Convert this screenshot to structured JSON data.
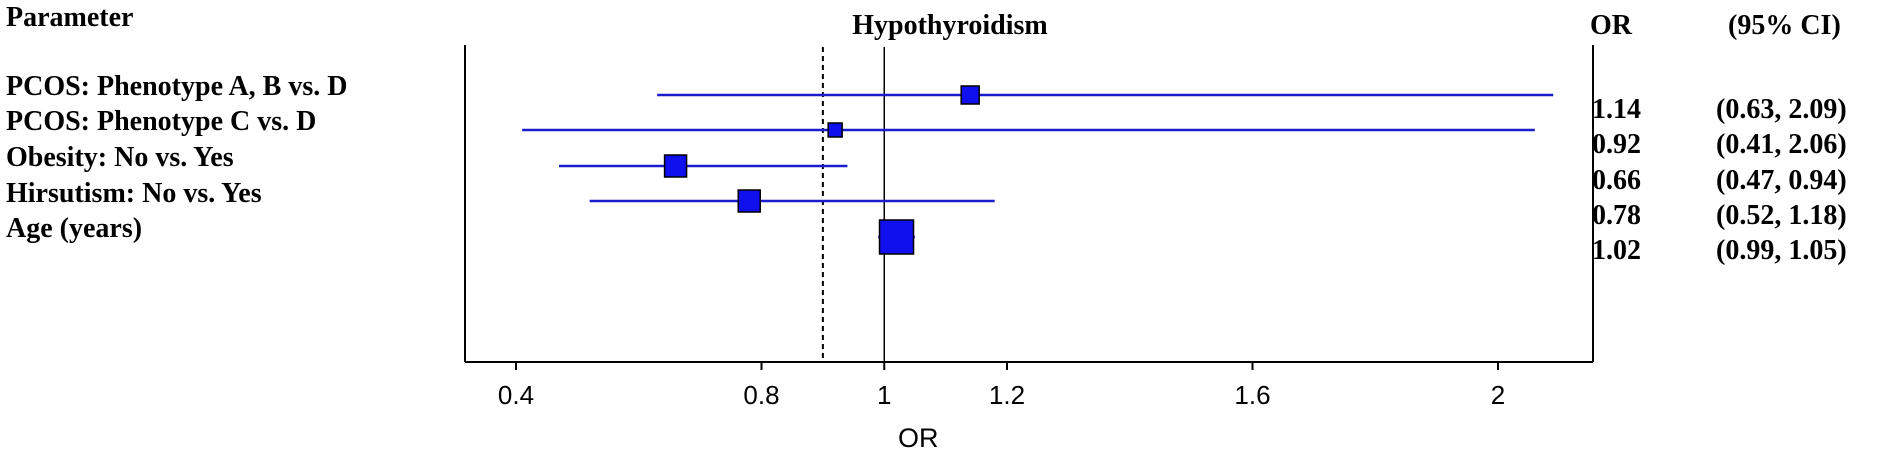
{
  "header": {
    "parameter": "Parameter",
    "or": "OR",
    "ci": "(95% CI)"
  },
  "chart_data": {
    "type": "forest",
    "title": "Hypothyroidism",
    "xlabel": "OR",
    "xlim": [
      0.3,
      2.15
    ],
    "xticks": [
      {
        "value": 0.4,
        "label": "0.4"
      },
      {
        "value": 0.8,
        "label": "0.8"
      },
      {
        "value": 1.0,
        "label": "1"
      },
      {
        "value": 1.2,
        "label": "1.2"
      },
      {
        "value": 1.6,
        "label": "1.6"
      },
      {
        "value": 2.0,
        "label": "2"
      }
    ],
    "reference_line": 1.0,
    "dashed_line": 0.9,
    "colors": {
      "ci_line": "#1c1ccf",
      "marker": "#1010ee",
      "marker_border": "#000000"
    },
    "rows": [
      {
        "label": "PCOS: Phenotype A, B vs. D",
        "or": 1.14,
        "lower": 0.63,
        "upper": 2.09,
        "or_text": "1.14",
        "ci_text": "(0.63, 2.09)"
      },
      {
        "label": "PCOS: Phenotype C vs. D",
        "or": 0.92,
        "lower": 0.41,
        "upper": 2.06,
        "or_text": "0.92",
        "ci_text": "(0.41, 2.06)"
      },
      {
        "label": "Obesity: No vs. Yes",
        "or": 0.66,
        "lower": 0.47,
        "upper": 0.94,
        "or_text": "0.66",
        "ci_text": "(0.47, 0.94)"
      },
      {
        "label": "Hirsutism: No vs. Yes",
        "or": 0.78,
        "lower": 0.52,
        "upper": 1.18,
        "or_text": "0.78",
        "ci_text": "(0.52, 1.18)"
      },
      {
        "label": "Age (years)",
        "or": 1.02,
        "lower": 0.99,
        "upper": 1.05,
        "or_text": "1.02",
        "ci_text": "(0.99, 1.05)"
      }
    ]
  }
}
